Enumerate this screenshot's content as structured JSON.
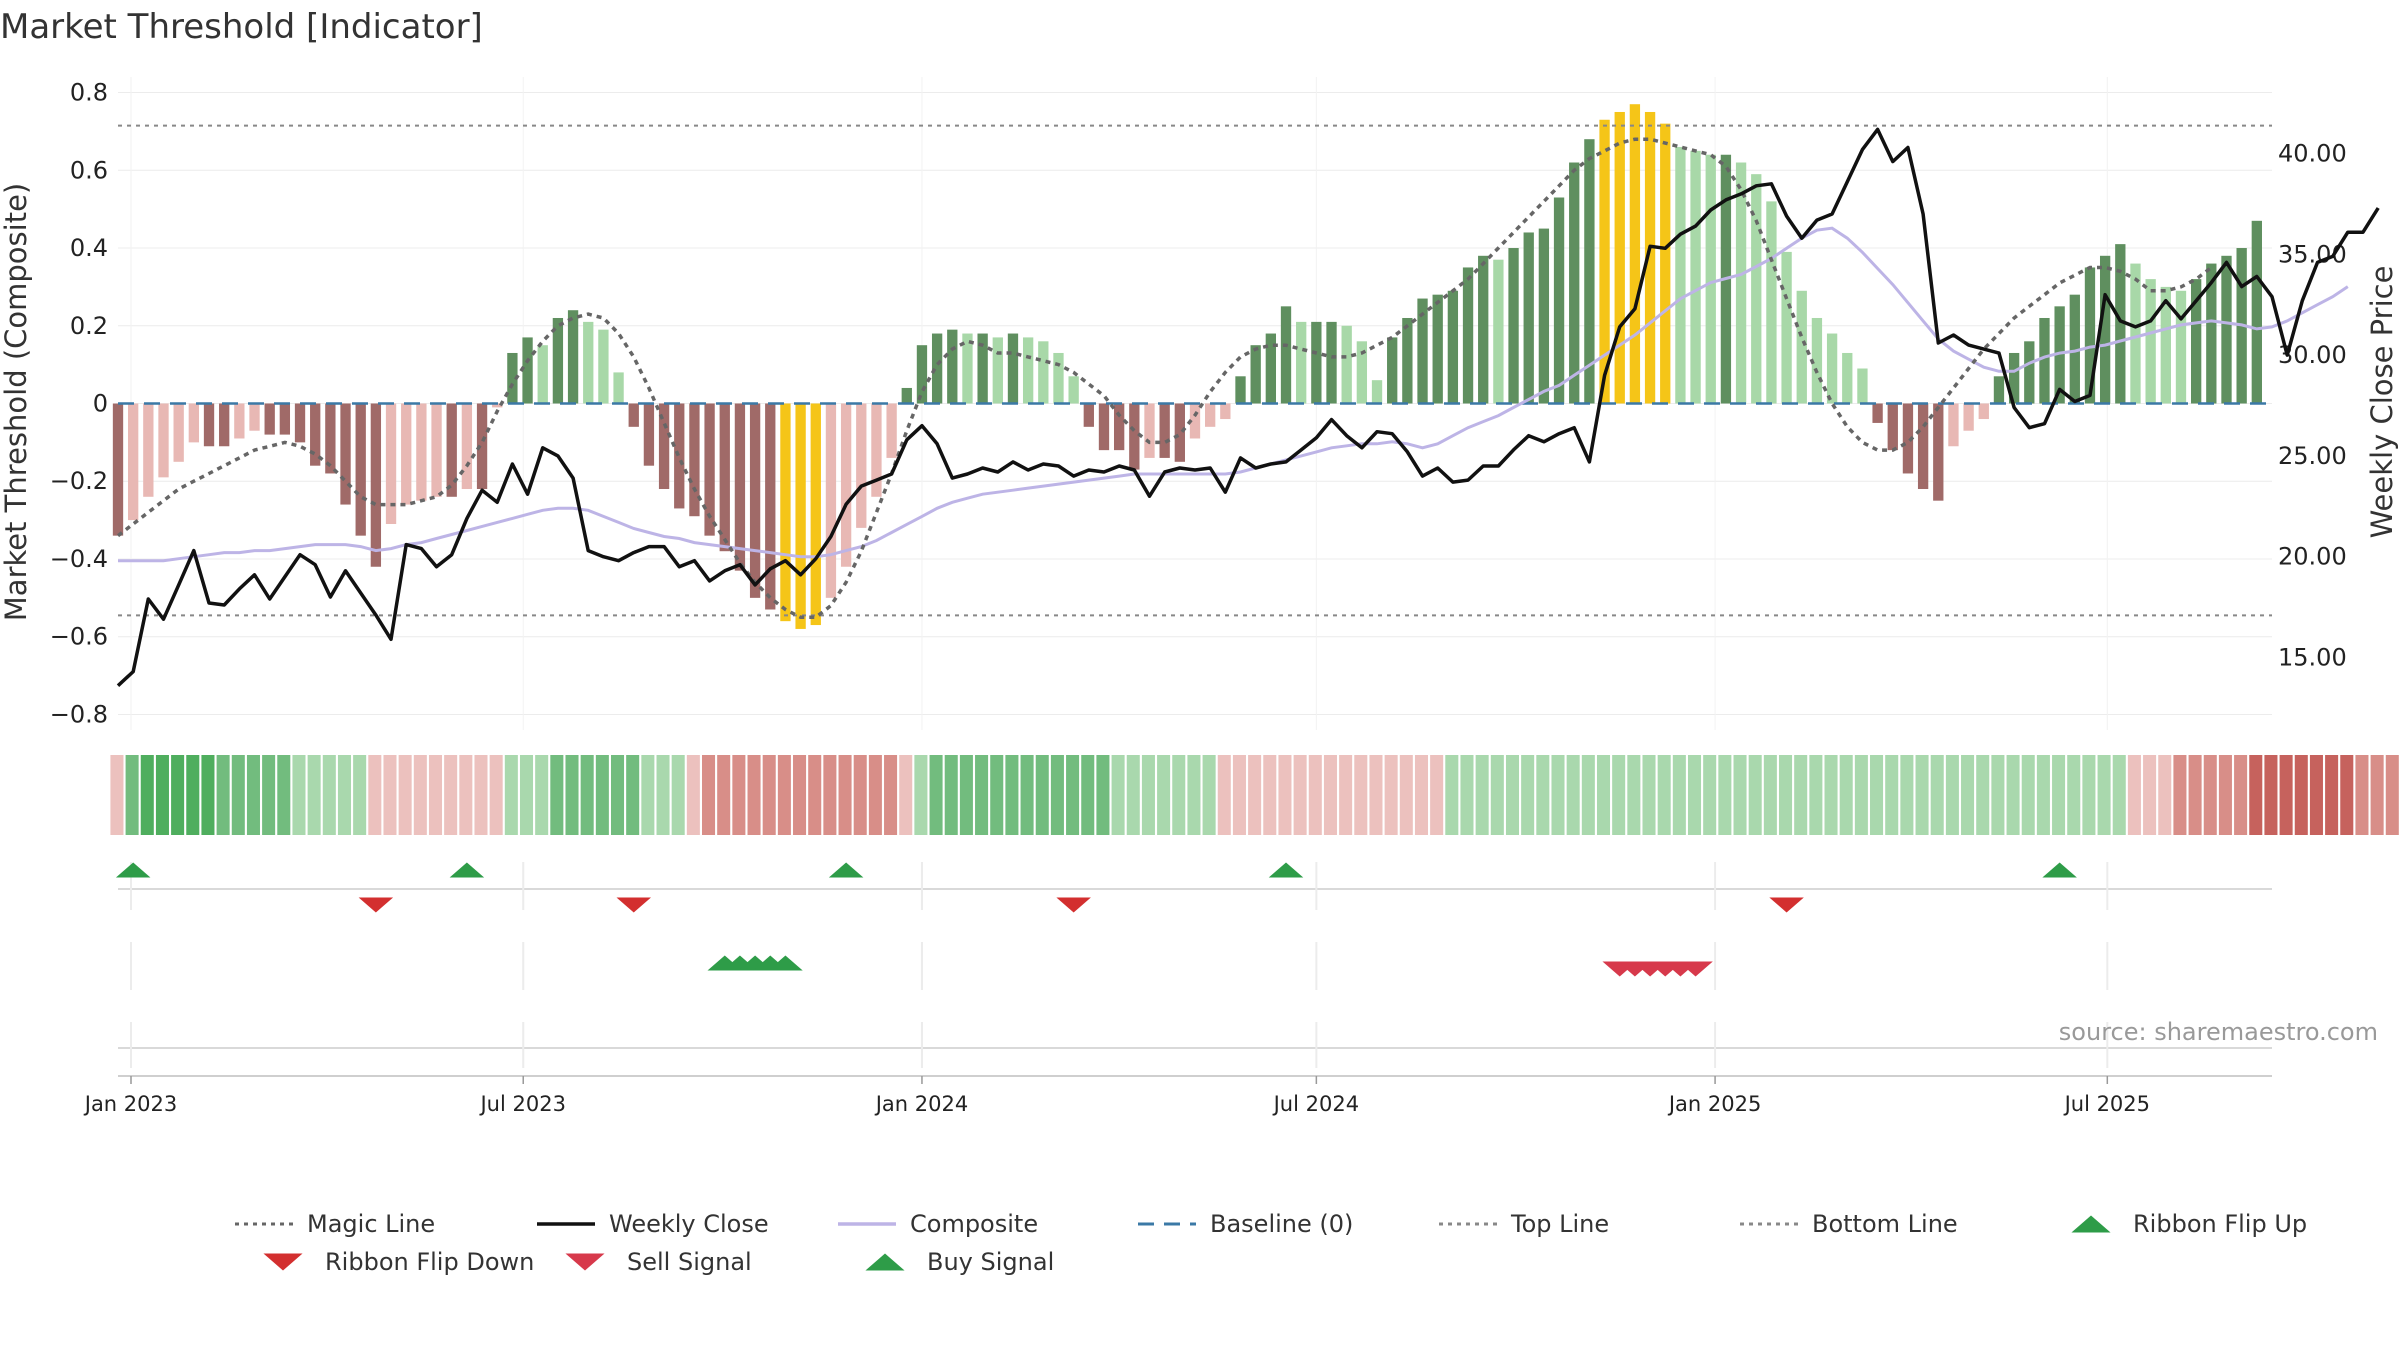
{
  "title": "Market Threshold [Indicator]",
  "source_label": "source: sharemaestro.com",
  "colors": {
    "weekly_close": "#111111",
    "composite": "#bdb4e6",
    "magic_line": "#666666",
    "baseline": "#3b79a6",
    "threshold_lines": "#888888",
    "extreme_bar": "#f5c518",
    "bull_strong": "#5f8f5f",
    "bull_weak": "#a8d8a8",
    "bear_strong": "#a06a68",
    "bear_weak": "#e8b8b4",
    "buy": "#2e9c48",
    "sell": "#d7394b",
    "flip_up": "#2e9c48",
    "flip_down": "#d32f2f"
  },
  "chart_data": {
    "type": "bar",
    "left_axis": {
      "label": "Market Threshold (Composite)",
      "range": [
        -0.84,
        0.84
      ],
      "ticks": [
        "0.8",
        "0.6",
        "0.4",
        "0.2",
        "0",
        "−0.2",
        "−0.4",
        "−0.6",
        "−0.8"
      ]
    },
    "right_axis": {
      "label": "Weekly Close Price",
      "range": [
        11.4,
        43.8
      ],
      "ticks": [
        "40.00",
        "35.00",
        "30.00",
        "25.00",
        "20.00",
        "15.00"
      ]
    },
    "x_axis": {
      "type": "weekly dates",
      "range": [
        "2022-12-26",
        "2025-09-15"
      ],
      "ticks": [
        "Jan 2023",
        "Jul 2023",
        "Jan 2024",
        "Jul 2024",
        "Jan 2025",
        "Jul 2025"
      ]
    },
    "grid": true,
    "top_line": 0.715,
    "bottom_line": -0.545,
    "baseline": 0,
    "series": [
      {
        "name": "Composite",
        "kind": "bar",
        "start_week": "2022-12-26",
        "values": [
          -0.34,
          -0.3,
          -0.24,
          -0.19,
          -0.15,
          -0.1,
          -0.11,
          -0.11,
          -0.09,
          -0.07,
          -0.08,
          -0.08,
          -0.1,
          -0.16,
          -0.18,
          -0.26,
          -0.34,
          -0.42,
          -0.31,
          -0.26,
          -0.25,
          -0.24,
          -0.24,
          -0.22,
          -0.22,
          -0.01,
          0.13,
          0.17,
          0.15,
          0.22,
          0.24,
          0.21,
          0.19,
          0.08,
          -0.06,
          -0.16,
          -0.22,
          -0.27,
          -0.29,
          -0.34,
          -0.38,
          -0.43,
          -0.5,
          -0.53,
          -0.56,
          -0.58,
          -0.57,
          -0.5,
          -0.42,
          -0.32,
          -0.24,
          -0.14,
          0.04,
          0.15,
          0.18,
          0.19,
          0.18,
          0.18,
          0.17,
          0.18,
          0.17,
          0.16,
          0.13,
          0.07,
          -0.06,
          -0.12,
          -0.12,
          -0.17,
          -0.14,
          -0.14,
          -0.15,
          -0.09,
          -0.06,
          -0.04,
          0.07,
          0.15,
          0.18,
          0.25,
          0.21,
          0.21,
          0.21,
          0.2,
          0.16,
          0.06,
          0.17,
          0.22,
          0.27,
          0.28,
          0.29,
          0.35,
          0.38,
          0.37,
          0.4,
          0.44,
          0.45,
          0.53,
          0.62,
          0.68,
          0.73,
          0.75,
          0.77,
          0.75,
          0.72,
          0.66,
          0.65,
          0.64,
          0.64,
          0.62,
          0.59,
          0.52,
          0.39,
          0.29,
          0.22,
          0.18,
          0.13,
          0.09,
          -0.05,
          -0.12,
          -0.18,
          -0.22,
          -0.25,
          -0.11,
          -0.07,
          -0.04,
          0.07,
          0.13,
          0.16,
          0.22,
          0.25,
          0.28,
          0.35,
          0.38,
          0.41,
          0.36,
          0.32,
          0.3,
          0.29,
          0.32,
          0.36,
          0.38,
          0.4,
          0.47
        ]
      },
      {
        "name": "Weekly Close",
        "kind": "line",
        "axis": "right",
        "start_week": "2022-12-26",
        "values": [
          13.6,
          14.3,
          17.9,
          16.9,
          18.6,
          20.3,
          17.7,
          17.6,
          18.4,
          19.1,
          17.9,
          19.0,
          20.1,
          19.6,
          18.0,
          19.3,
          18.2,
          17.1,
          15.9,
          20.6,
          20.4,
          19.5,
          20.1,
          21.9,
          23.3,
          22.7,
          24.6,
          23.1,
          25.4,
          25.0,
          23.9,
          20.3,
          20.0,
          19.8,
          20.2,
          20.5,
          20.5,
          19.5,
          19.8,
          18.8,
          19.3,
          19.6,
          18.6,
          19.4,
          19.8,
          19.1,
          19.9,
          21.0,
          22.6,
          23.5,
          23.8,
          24.1,
          25.8,
          26.5,
          25.6,
          23.9,
          24.1,
          24.4,
          24.2,
          24.7,
          24.3,
          24.6,
          24.5,
          24.0,
          24.3,
          24.2,
          24.5,
          24.3,
          23.0,
          24.2,
          24.4,
          24.3,
          24.4,
          23.2,
          24.9,
          24.4,
          24.6,
          24.7,
          25.3,
          25.9,
          26.8,
          26.0,
          25.4,
          26.2,
          26.1,
          25.2,
          24.0,
          24.4,
          23.7,
          23.8,
          24.5,
          24.5,
          25.3,
          26.0,
          25.7,
          26.1,
          26.4,
          24.7,
          29.0,
          31.4,
          32.3,
          35.4,
          35.3,
          36.0,
          36.4,
          37.2,
          37.7,
          38.0,
          38.4,
          38.5,
          36.9,
          35.8,
          36.7,
          37.0,
          38.6,
          40.2,
          41.2,
          39.6,
          40.3,
          37.0,
          30.6,
          31.0,
          30.5,
          30.3,
          30.1,
          27.4,
          26.4,
          26.6,
          28.3,
          27.7,
          28.0,
          33.0,
          31.7,
          31.4,
          31.7,
          32.7,
          31.8,
          32.7,
          33.6,
          34.6,
          33.4,
          33.9,
          32.9,
          30.0,
          32.7,
          34.6,
          34.9,
          36.1,
          36.1,
          37.3
        ]
      },
      {
        "name": "Composite",
        "kind": "line",
        "axis": "right",
        "start_week": "2022-12-26",
        "values": [
          19.8,
          19.8,
          19.8,
          19.8,
          19.9,
          20.0,
          20.1,
          20.2,
          20.2,
          20.3,
          20.3,
          20.4,
          20.5,
          20.6,
          20.6,
          20.6,
          20.5,
          20.3,
          20.4,
          20.6,
          20.7,
          20.9,
          21.1,
          21.3,
          21.5,
          21.7,
          21.9,
          22.1,
          22.3,
          22.4,
          22.4,
          22.3,
          22.0,
          21.7,
          21.4,
          21.2,
          21.0,
          20.9,
          20.7,
          20.6,
          20.5,
          20.4,
          20.3,
          20.2,
          20.1,
          20.0,
          20.0,
          20.1,
          20.3,
          20.5,
          20.8,
          21.2,
          21.6,
          22.0,
          22.4,
          22.7,
          22.9,
          23.1,
          23.2,
          23.3,
          23.4,
          23.5,
          23.6,
          23.7,
          23.8,
          23.9,
          24.0,
          24.1,
          24.1,
          24.1,
          24.1,
          24.1,
          24.1,
          24.1,
          24.2,
          24.4,
          24.6,
          24.8,
          25.0,
          25.2,
          25.4,
          25.5,
          25.6,
          25.6,
          25.7,
          25.6,
          25.4,
          25.6,
          26.0,
          26.4,
          26.7,
          27.0,
          27.4,
          27.8,
          28.2,
          28.5,
          29.0,
          29.5,
          30.0,
          30.5,
          31.0,
          31.6,
          32.2,
          32.8,
          33.2,
          33.6,
          33.8,
          34.0,
          34.4,
          34.8,
          35.3,
          35.8,
          36.2,
          36.3,
          35.8,
          35.1,
          34.3,
          33.5,
          32.6,
          31.7,
          30.8,
          30.2,
          29.8,
          29.4,
          29.2,
          29.2,
          29.6,
          29.9,
          30.1,
          30.2,
          30.4,
          30.5,
          30.7,
          30.9,
          31.1,
          31.3,
          31.5,
          31.6,
          31.7,
          31.6,
          31.5,
          31.3,
          31.4,
          31.7,
          32.1,
          32.5,
          32.9,
          33.4
        ]
      },
      {
        "name": "Magic Line",
        "kind": "line",
        "axis": "left",
        "start_week": "2022-12-26",
        "values": [
          -0.34,
          -0.31,
          -0.28,
          -0.25,
          -0.22,
          -0.2,
          -0.18,
          -0.16,
          -0.14,
          -0.12,
          -0.11,
          -0.1,
          -0.11,
          -0.13,
          -0.16,
          -0.2,
          -0.24,
          -0.26,
          -0.26,
          -0.26,
          -0.25,
          -0.24,
          -0.21,
          -0.16,
          -0.1,
          -0.02,
          0.05,
          0.11,
          0.16,
          0.2,
          0.22,
          0.23,
          0.22,
          0.18,
          0.12,
          0.04,
          -0.05,
          -0.14,
          -0.22,
          -0.29,
          -0.35,
          -0.41,
          -0.46,
          -0.5,
          -0.53,
          -0.55,
          -0.55,
          -0.52,
          -0.46,
          -0.38,
          -0.28,
          -0.18,
          -0.07,
          0.03,
          0.1,
          0.14,
          0.16,
          0.15,
          0.13,
          0.13,
          0.12,
          0.11,
          0.1,
          0.08,
          0.05,
          0.02,
          -0.03,
          -0.07,
          -0.1,
          -0.1,
          -0.08,
          -0.03,
          0.03,
          0.08,
          0.12,
          0.14,
          0.15,
          0.15,
          0.14,
          0.13,
          0.12,
          0.12,
          0.13,
          0.15,
          0.17,
          0.2,
          0.23,
          0.26,
          0.29,
          0.32,
          0.36,
          0.4,
          0.44,
          0.48,
          0.52,
          0.56,
          0.6,
          0.63,
          0.65,
          0.67,
          0.68,
          0.68,
          0.67,
          0.66,
          0.65,
          0.64,
          0.61,
          0.55,
          0.47,
          0.37,
          0.27,
          0.17,
          0.08,
          0.0,
          -0.06,
          -0.1,
          -0.12,
          -0.12,
          -0.1,
          -0.06,
          -0.01,
          0.04,
          0.09,
          0.14,
          0.18,
          0.22,
          0.25,
          0.28,
          0.31,
          0.33,
          0.35,
          0.35,
          0.34,
          0.32,
          0.29,
          0.29,
          0.3,
          0.32,
          0.35
        ]
      },
      {
        "name": "Baseline (0)",
        "kind": "hline",
        "value": 0
      },
      {
        "name": "Top Line",
        "kind": "hline",
        "value": 0.715
      },
      {
        "name": "Bottom Line",
        "kind": "hline",
        "value": -0.545
      }
    ],
    "ribbon": {
      "start_week": "2022-12-26",
      "values": [
        -1,
        2,
        3,
        3,
        3,
        3,
        3,
        2,
        2,
        2,
        2,
        2,
        1,
        1,
        1,
        1,
        1,
        -1,
        -1,
        -1,
        -1,
        -1,
        -1,
        -1,
        -1,
        -1,
        1,
        1,
        1,
        2,
        2,
        2,
        2,
        2,
        2,
        1,
        1,
        1,
        -1,
        -2,
        -2,
        -2,
        -2,
        -2,
        -2,
        -2,
        -2,
        -2,
        -2,
        -2,
        -2,
        -2,
        -1,
        1,
        2,
        2,
        2,
        2,
        2,
        2,
        2,
        2,
        2,
        2,
        2,
        2,
        1,
        1,
        1,
        1,
        1,
        1,
        1,
        -1,
        -1,
        -1,
        -1,
        -1,
        -1,
        -1,
        -1,
        -1,
        -1,
        -1,
        -1,
        -1,
        -1,
        -1,
        1,
        1,
        1,
        1,
        1,
        1,
        1,
        1,
        1,
        1,
        1,
        1,
        1,
        1,
        1,
        1,
        1,
        1,
        1,
        1,
        1,
        1,
        1,
        1,
        1,
        1,
        1,
        1,
        1,
        1,
        1,
        1,
        1,
        1,
        1,
        1,
        1,
        1,
        1,
        1,
        1,
        1,
        1,
        1,
        1,
        -1,
        -1,
        -1,
        -2,
        -2,
        -2,
        -2,
        -2,
        -3,
        -3,
        -3,
        -3,
        -3,
        -3,
        -3,
        -2,
        -2,
        -2,
        -1,
        1,
        1,
        1,
        1,
        1,
        1,
        1,
        1,
        1,
        1,
        1,
        1,
        1,
        1
      ]
    },
    "markers": [
      {
        "name": "Ribbon Flip Up",
        "dates": [
          "2023-01-02",
          "2023-06-05",
          "2023-11-27",
          "2024-06-17",
          "2025-06-09"
        ]
      },
      {
        "name": "Ribbon Flip Down",
        "dates": [
          "2023-04-24",
          "2023-08-21",
          "2024-03-11",
          "2025-02-03"
        ]
      },
      {
        "name": "Buy Signal",
        "dates": [
          "2023-10-02",
          "2023-10-09",
          "2023-10-16",
          "2023-10-23",
          "2023-10-30"
        ]
      },
      {
        "name": "Sell Signal",
        "dates": [
          "2024-11-18",
          "2024-11-25",
          "2024-12-02",
          "2024-12-09",
          "2024-12-16",
          "2024-12-23"
        ]
      }
    ]
  },
  "legend": [
    {
      "label": "Magic Line",
      "kind": "dotted",
      "color": "#666666"
    },
    {
      "label": "Weekly Close",
      "kind": "solid",
      "color": "#111111"
    },
    {
      "label": "Composite",
      "kind": "solid",
      "color": "#bdb4e6"
    },
    {
      "label": "Baseline (0)",
      "kind": "dashed",
      "color": "#3b79a6"
    },
    {
      "label": "Top Line",
      "kind": "dotted",
      "color": "#888888"
    },
    {
      "label": "Bottom Line",
      "kind": "dotted",
      "color": "#888888"
    },
    {
      "label": "Ribbon Flip Up",
      "kind": "tri-up",
      "color": "#2e9c48"
    },
    {
      "label": "Ribbon Flip Down",
      "kind": "tri-down",
      "color": "#d32f2f"
    },
    {
      "label": "Sell Signal",
      "kind": "tri-down",
      "color": "#d7394b"
    },
    {
      "label": "Buy Signal",
      "kind": "tri-up",
      "color": "#2e9c48"
    }
  ]
}
